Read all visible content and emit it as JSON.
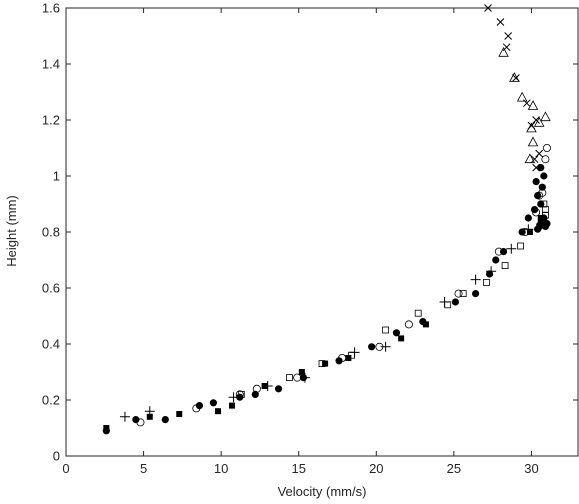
{
  "chart_data": {
    "type": "scatter",
    "xlabel": "Velocity (mm/s)",
    "ylabel": "Height (mm)",
    "xlim": [
      0,
      33
    ],
    "ylim": [
      0,
      1.6
    ],
    "xticks": [
      0,
      5,
      10,
      15,
      20,
      25,
      30
    ],
    "yticks": [
      0,
      0.2,
      0.4,
      0.6,
      0.8,
      1,
      1.2,
      1.4,
      1.6
    ],
    "xtick_labels": [
      "0",
      "5",
      "10",
      "15",
      "20",
      "25",
      "30"
    ],
    "ytick_labels": [
      "0",
      "0.2",
      "0.4",
      "0.6",
      "0.8",
      "1",
      "1.2",
      "1.4",
      "1.6"
    ],
    "grid": false,
    "box": true,
    "series": [
      {
        "marker": "filled-circle",
        "points": [
          [
            2.6,
            0.09
          ],
          [
            4.5,
            0.13
          ],
          [
            6.4,
            0.13
          ],
          [
            8.6,
            0.18
          ],
          [
            9.5,
            0.19
          ],
          [
            11.2,
            0.21
          ],
          [
            12.2,
            0.22
          ],
          [
            13.7,
            0.24
          ],
          [
            15.3,
            0.28
          ],
          [
            17.6,
            0.34
          ],
          [
            19.7,
            0.39
          ],
          [
            21.3,
            0.44
          ],
          [
            23.0,
            0.48
          ],
          [
            25.1,
            0.55
          ],
          [
            26.4,
            0.58
          ],
          [
            27.3,
            0.65
          ],
          [
            27.7,
            0.7
          ],
          [
            28.2,
            0.73
          ],
          [
            29.4,
            0.8
          ],
          [
            29.8,
            0.85
          ],
          [
            30.4,
            0.81
          ],
          [
            30.6,
            0.83
          ],
          [
            30.9,
            0.82
          ],
          [
            30.2,
            0.88
          ],
          [
            30.6,
            0.9
          ],
          [
            30.4,
            0.93
          ],
          [
            30.7,
            0.96
          ],
          [
            30.8,
            1.0
          ],
          [
            30.6,
            1.03
          ],
          [
            30.3,
            0.98
          ],
          [
            30.8,
            0.85
          ],
          [
            31.0,
            0.83
          ]
        ]
      },
      {
        "marker": "filled-square",
        "points": [
          [
            2.6,
            0.1
          ],
          [
            5.4,
            0.14
          ],
          [
            7.3,
            0.15
          ],
          [
            9.8,
            0.16
          ],
          [
            10.7,
            0.18
          ],
          [
            12.8,
            0.25
          ],
          [
            15.2,
            0.3
          ],
          [
            16.7,
            0.33
          ],
          [
            18.2,
            0.35
          ],
          [
            21.6,
            0.42
          ],
          [
            23.2,
            0.47
          ],
          [
            29.9,
            0.8
          ],
          [
            30.6,
            0.85
          ],
          [
            30.5,
            0.82
          ]
        ]
      },
      {
        "marker": "open-circle",
        "points": [
          [
            4.8,
            0.12
          ],
          [
            8.4,
            0.17
          ],
          [
            11.2,
            0.22
          ],
          [
            12.3,
            0.24
          ],
          [
            14.9,
            0.28
          ],
          [
            17.8,
            0.35
          ],
          [
            20.2,
            0.39
          ],
          [
            22.1,
            0.47
          ],
          [
            25.3,
            0.58
          ],
          [
            27.9,
            0.73
          ],
          [
            29.6,
            0.8
          ],
          [
            30.3,
            0.87
          ],
          [
            30.7,
            0.94
          ],
          [
            30.9,
            1.06
          ],
          [
            31.0,
            1.1
          ],
          [
            30.5,
            0.93
          ]
        ]
      },
      {
        "marker": "open-square",
        "points": [
          [
            11.3,
            0.22
          ],
          [
            14.4,
            0.28
          ],
          [
            16.5,
            0.33
          ],
          [
            18.4,
            0.36
          ],
          [
            20.6,
            0.45
          ],
          [
            22.7,
            0.51
          ],
          [
            24.6,
            0.54
          ],
          [
            25.6,
            0.58
          ],
          [
            27.1,
            0.62
          ],
          [
            28.3,
            0.68
          ],
          [
            29.3,
            0.75
          ],
          [
            30.9,
            0.86
          ],
          [
            30.9,
            0.88
          ],
          [
            30.8,
            0.9
          ]
        ]
      },
      {
        "marker": "plus",
        "points": [
          [
            3.8,
            0.14
          ],
          [
            5.4,
            0.16
          ],
          [
            10.8,
            0.21
          ],
          [
            13.0,
            0.25
          ],
          [
            15.4,
            0.28
          ],
          [
            18.6,
            0.37
          ],
          [
            20.6,
            0.39
          ],
          [
            24.4,
            0.55
          ],
          [
            26.4,
            0.63
          ],
          [
            27.4,
            0.66
          ],
          [
            28.7,
            0.74
          ],
          [
            29.8,
            0.81
          ]
        ]
      },
      {
        "marker": "cross",
        "points": [
          [
            27.2,
            1.6
          ],
          [
            28.0,
            1.55
          ],
          [
            28.5,
            1.5
          ],
          [
            28.4,
            1.46
          ],
          [
            29.0,
            1.35
          ],
          [
            29.7,
            1.26
          ],
          [
            30.0,
            1.18
          ],
          [
            30.3,
            1.2
          ],
          [
            30.5,
            1.08
          ],
          [
            30.3,
            1.03
          ],
          [
            30.2,
            1.06
          ]
        ]
      },
      {
        "marker": "open-triangle",
        "points": [
          [
            28.2,
            1.44
          ],
          [
            28.9,
            1.35
          ],
          [
            29.4,
            1.28
          ],
          [
            30.1,
            1.25
          ],
          [
            30.9,
            1.21
          ],
          [
            30.0,
            1.17
          ],
          [
            30.5,
            1.19
          ],
          [
            29.9,
            1.06
          ],
          [
            30.1,
            1.12
          ]
        ]
      }
    ]
  }
}
